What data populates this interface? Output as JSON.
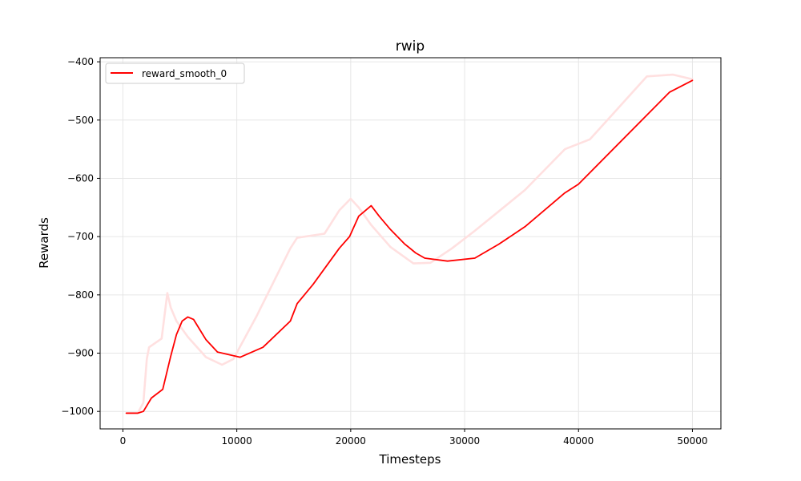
{
  "chart_data": {
    "type": "line",
    "title": "rwip",
    "xlabel": "Timesteps",
    "ylabel": "Rewards",
    "xlim": [
      -2000,
      52500
    ],
    "ylim": [
      -1030,
      -393
    ],
    "xticks": [
      0,
      10000,
      20000,
      30000,
      40000,
      50000
    ],
    "yticks": [
      -1000,
      -900,
      -800,
      -700,
      -600,
      -500,
      -400
    ],
    "xtick_labels": [
      "0",
      "10000",
      "20000",
      "30000",
      "40000",
      "50000"
    ],
    "ytick_labels": [
      "−1000",
      "−900",
      "−800",
      "−700",
      "−600",
      "−500",
      "−400"
    ],
    "grid": true,
    "legend_position": "top-left",
    "series": [
      {
        "name": "reward_smooth_0",
        "color": "#ff0000",
        "x": [
          300,
          1300,
          1800,
          2500,
          3500,
          4200,
          4700,
          5200,
          5700,
          6200,
          7300,
          8300,
          10300,
          12300,
          14700,
          15300,
          16700,
          19000,
          19900,
          20700,
          21800,
          22500,
          23500,
          24700,
          25700,
          26500,
          28500,
          30900,
          33000,
          35300,
          38800,
          40000,
          48000,
          50000
        ],
        "values": [
          -1003,
          -1003,
          -1000,
          -977,
          -962,
          -905,
          -868,
          -845,
          -838,
          -842,
          -877,
          -898,
          -907,
          -890,
          -845,
          -815,
          -782,
          -720,
          -700,
          -665,
          -647,
          -665,
          -688,
          -712,
          -728,
          -737,
          -742,
          -737,
          -713,
          -683,
          -625,
          -610,
          -452,
          -432
        ]
      },
      {
        "name": "",
        "color": "#ffe0e0",
        "x": [
          300,
          1300,
          1800,
          2100,
          2300,
          3400,
          3900,
          4200,
          4700,
          5700,
          7300,
          8700,
          9700,
          11700,
          14700,
          15300,
          17700,
          19000,
          20000,
          20700,
          21800,
          23500,
          25500,
          27000,
          28900,
          30900,
          35300,
          38800,
          41000,
          46000,
          48300,
          50000
        ],
        "values": [
          -1003,
          -1003,
          -985,
          -910,
          -890,
          -875,
          -797,
          -822,
          -845,
          -872,
          -907,
          -920,
          -910,
          -838,
          -720,
          -702,
          -695,
          -655,
          -635,
          -650,
          -680,
          -718,
          -746,
          -745,
          -720,
          -690,
          -620,
          -550,
          -533,
          -425,
          -422,
          -430
        ]
      }
    ]
  }
}
